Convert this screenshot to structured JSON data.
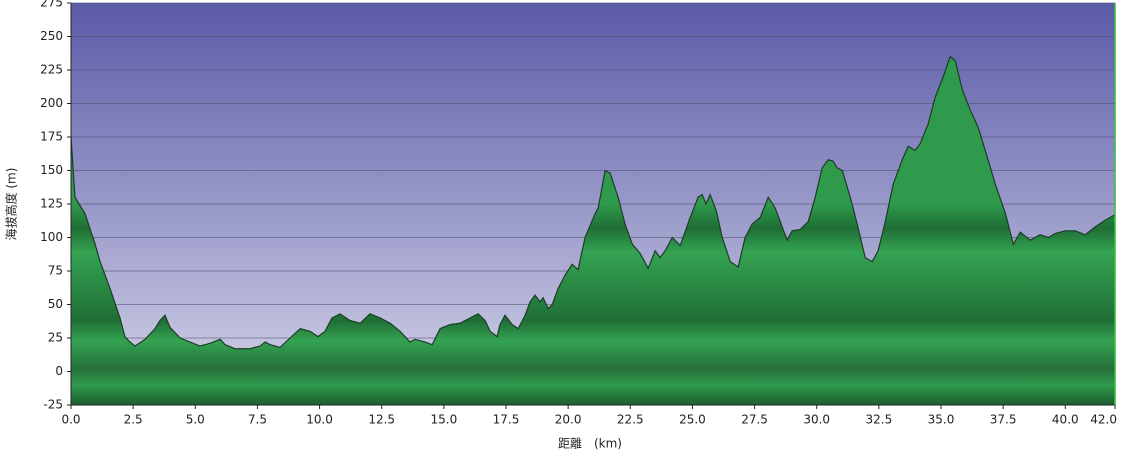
{
  "chart_data": {
    "type": "area",
    "x_label": "距離　(km)",
    "y_label": "海拔高度 (m)",
    "xlim": [
      0,
      42.0
    ],
    "ylim": [
      -25,
      275
    ],
    "xticks": [
      {
        "value": 0,
        "label": "0.0"
      },
      2.5,
      {
        "value": 5,
        "label": "5.0"
      },
      7.5,
      {
        "value": 10,
        "label": "10.0"
      },
      12.5,
      {
        "value": 15,
        "label": "15.0"
      },
      17.5,
      {
        "value": 20,
        "label": "20.0"
      },
      22.5,
      {
        "value": 25,
        "label": "25.0"
      },
      27.5,
      {
        "value": 30,
        "label": "30.0"
      },
      32.5,
      {
        "value": 35,
        "label": "35.0"
      },
      37.5,
      {
        "value": 40,
        "label": "40.0"
      },
      {
        "value": 42,
        "label": "42.0"
      }
    ],
    "yticks": [
      -25,
      0,
      25,
      50,
      75,
      100,
      125,
      150,
      175,
      200,
      225,
      250,
      275
    ],
    "grid": true,
    "x": [
      0,
      0.16,
      0.56,
      0.97,
      1.17,
      1.57,
      1.97,
      2.17,
      2.37,
      2.58,
      2.98,
      3.38,
      3.58,
      3.78,
      3.98,
      4.39,
      4.79,
      5.19,
      5.59,
      6.0,
      6.2,
      6.6,
      7.2,
      7.61,
      7.81,
      8.01,
      8.41,
      8.81,
      9.22,
      9.62,
      9.94,
      10.22,
      10.5,
      10.82,
      11.23,
      11.63,
      12.03,
      12.43,
      12.84,
      13.24,
      13.64,
      13.84,
      14.25,
      14.53,
      14.85,
      15.25,
      15.65,
      16.06,
      16.38,
      16.66,
      16.86,
      17.14,
      17.26,
      17.46,
      17.75,
      17.99,
      18.27,
      18.47,
      18.67,
      18.87,
      18.99,
      19.2,
      19.36,
      19.6,
      19.88,
      20.16,
      20.4,
      20.68,
      21.09,
      21.21,
      21.49,
      21.69,
      22.01,
      22.29,
      22.58,
      22.9,
      23.22,
      23.5,
      23.7,
      23.9,
      24.19,
      24.51,
      24.91,
      25.23,
      25.39,
      25.55,
      25.71,
      25.96,
      26.2,
      26.52,
      26.84,
      27.12,
      27.4,
      27.73,
      28.05,
      28.33,
      28.53,
      28.81,
      29.01,
      29.34,
      29.66,
      29.94,
      30.22,
      30.46,
      30.66,
      30.82,
      31.03,
      31.35,
      31.63,
      31.95,
      32.23,
      32.47,
      32.76,
      33.08,
      33.44,
      33.68,
      33.96,
      34.16,
      34.49,
      34.77,
      35.09,
      35.37,
      35.57,
      35.86,
      36.18,
      36.5,
      36.78,
      37.18,
      37.59,
      37.91,
      38.19,
      38.59,
      38.99,
      39.32,
      39.6,
      40.0,
      40.4,
      40.8,
      41.21,
      41.61,
      42.0
    ],
    "series": [
      {
        "color": "#2e9a4a",
        "values": [
          175,
          130,
          118,
          95,
          82,
          62,
          40,
          26,
          22,
          19,
          24,
          32,
          38,
          42,
          33,
          25,
          22,
          19,
          21,
          24,
          20,
          17,
          17,
          19,
          22,
          20,
          18,
          25,
          32,
          30,
          26,
          30,
          40,
          43,
          38,
          36,
          43,
          40,
          36,
          30,
          22,
          24,
          22,
          20,
          32,
          35,
          36,
          40,
          43,
          38,
          30,
          26,
          35,
          42,
          35,
          32,
          42,
          52,
          57,
          52,
          55,
          47,
          50,
          62,
          72,
          80,
          76,
          100,
          118,
          122,
          150,
          148,
          130,
          110,
          95,
          88,
          77,
          90,
          85,
          90,
          100,
          94,
          115,
          130,
          132,
          125,
          132,
          120,
          100,
          82,
          78,
          100,
          110,
          115,
          130,
          122,
          112,
          98,
          105,
          106,
          112,
          130,
          152,
          158,
          157,
          152,
          150,
          130,
          110,
          85,
          82,
          90,
          112,
          140,
          158,
          168,
          165,
          170,
          185,
          205,
          220,
          235,
          232,
          210,
          195,
          182,
          165,
          140,
          118,
          95,
          104,
          98,
          102,
          100,
          103,
          105,
          105,
          102,
          108,
          113,
          117
        ]
      }
    ]
  }
}
